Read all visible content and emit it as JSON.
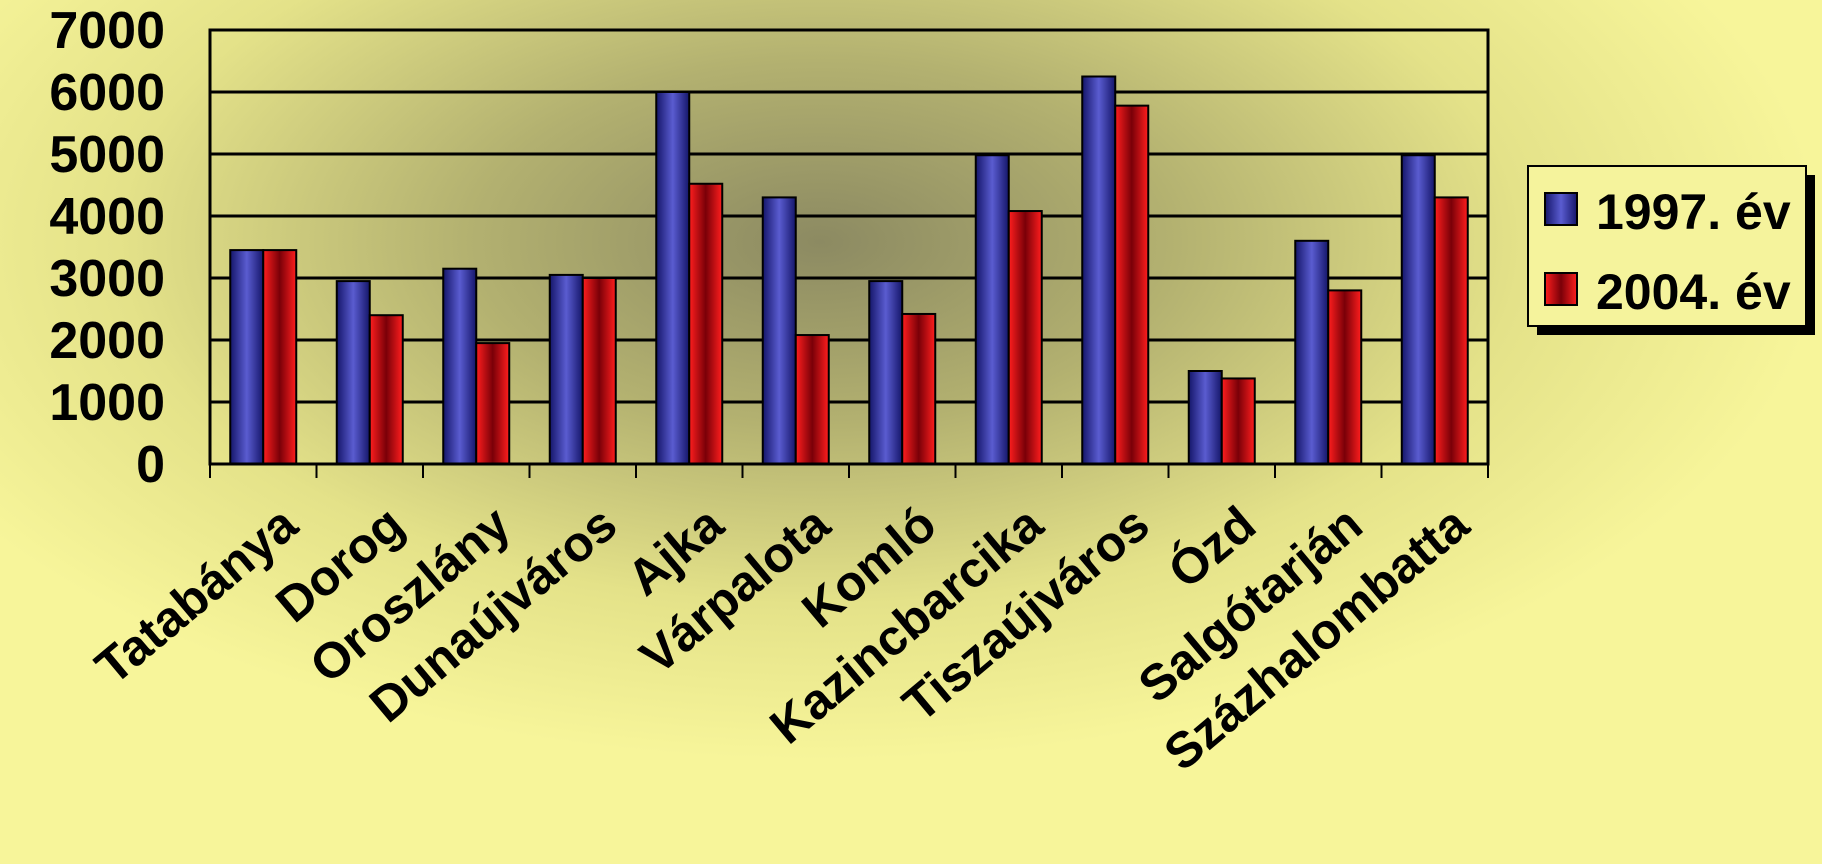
{
  "chart_data": {
    "type": "bar",
    "title": "",
    "xlabel": "",
    "ylabel": "",
    "ylim": [
      0,
      7000
    ],
    "yticks": [
      0,
      1000,
      2000,
      3000,
      4000,
      5000,
      6000,
      7000
    ],
    "grid": true,
    "legend_position": "right",
    "categories": [
      "Tatabánya",
      "Dorog",
      "Oroszlány",
      "Dunaújváros",
      "Ajka",
      "Várpalota",
      "Komló",
      "Kazincbarcika",
      "Tiszaújváros",
      "Ózd",
      "Salgótarján",
      "Százhalombatta"
    ],
    "series": [
      {
        "name": "1997. év",
        "color": "#2b2d8f",
        "values": [
          3450,
          2950,
          3150,
          3050,
          6000,
          4300,
          2950,
          4980,
          6250,
          1500,
          3600,
          4980
        ]
      },
      {
        "name": "2004. év",
        "color": "#e0101a",
        "values": [
          3450,
          2400,
          1950,
          3000,
          4520,
          2080,
          2420,
          4080,
          5780,
          1380,
          2800,
          4300
        ]
      }
    ]
  }
}
